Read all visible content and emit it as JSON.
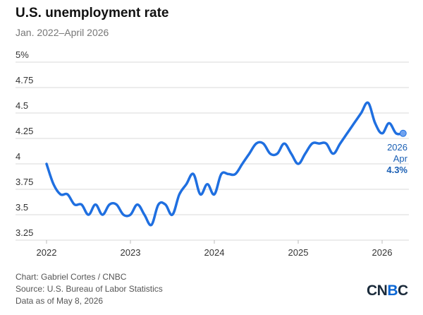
{
  "chart_data": {
    "type": "line",
    "title": "U.S. unemployment rate",
    "subtitle": "Jan. 2022–April 2026",
    "y_ticks": [
      "5%",
      "4.75",
      "4.5",
      "4.25",
      "4",
      "3.75",
      "3.5",
      "3.25"
    ],
    "x_ticks": [
      "2022",
      "2023",
      "2024",
      "2025",
      "2026"
    ],
    "ylim": [
      3.25,
      5.0
    ],
    "grid": true,
    "line_color": "#1f6fe0",
    "series": [
      {
        "x": [
          "2022-01",
          "2022-02",
          "2022-03",
          "2022-04",
          "2022-05",
          "2022-06",
          "2022-07",
          "2022-08",
          "2022-09",
          "2022-10",
          "2022-11",
          "2022-12",
          "2023-01",
          "2023-02",
          "2023-03",
          "2023-04",
          "2023-05",
          "2023-06",
          "2023-07",
          "2023-08",
          "2023-09",
          "2023-10",
          "2023-11",
          "2023-12",
          "2024-01",
          "2024-02",
          "2024-03",
          "2024-04",
          "2024-05",
          "2024-06",
          "2024-07",
          "2024-08",
          "2024-09",
          "2024-10",
          "2024-11",
          "2024-12",
          "2025-01",
          "2025-02",
          "2025-03",
          "2025-04",
          "2025-05",
          "2025-06",
          "2025-07",
          "2025-08",
          "2025-09",
          "2025-10",
          "2025-11",
          "2025-12",
          "2026-01",
          "2026-02",
          "2026-03",
          "2026-04"
        ],
        "values": [
          4.0,
          3.8,
          3.7,
          3.7,
          3.6,
          3.6,
          3.5,
          3.6,
          3.5,
          3.6,
          3.6,
          3.5,
          3.5,
          3.6,
          3.5,
          3.4,
          3.6,
          3.6,
          3.5,
          3.7,
          3.8,
          3.9,
          3.7,
          3.8,
          3.7,
          3.9,
          3.9,
          3.9,
          4.0,
          4.1,
          4.2,
          4.2,
          4.1,
          4.1,
          4.2,
          4.1,
          4.0,
          4.1,
          4.2,
          4.2,
          4.2,
          4.1,
          4.2,
          4.3,
          4.4,
          4.5,
          4.6,
          4.4,
          4.3,
          4.4,
          4.3,
          4.3
        ]
      }
    ],
    "annotation": {
      "year": "2026",
      "month": "Apr",
      "value": "4.3%"
    }
  },
  "footer": {
    "credit": "Chart: Gabriel Cortes / CNBC",
    "source": "Source: U.S. Bureau of Labor Statistics",
    "date": "Data as of May 8, 2026"
  },
  "logo": {
    "left": "CN",
    "accent": "B",
    "right": "C"
  }
}
